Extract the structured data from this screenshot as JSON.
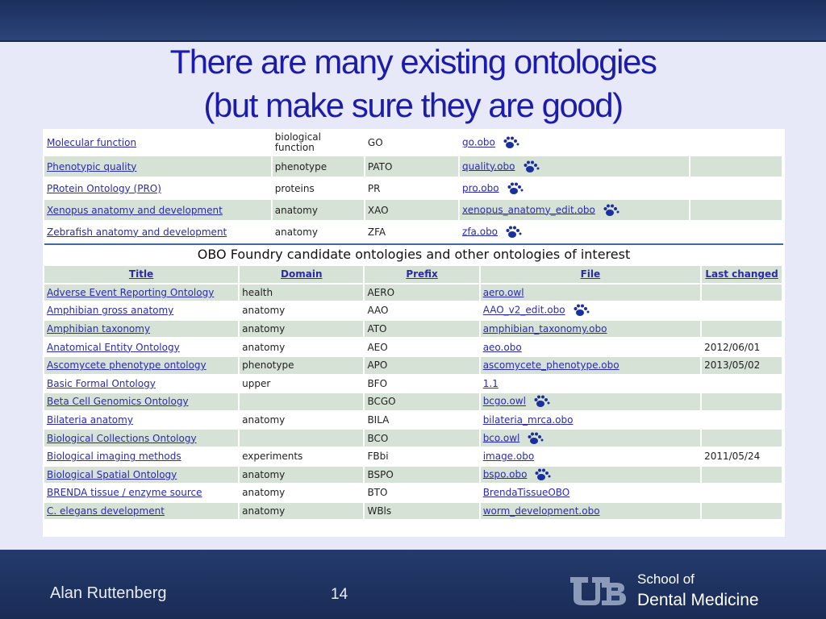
{
  "slide": {
    "title_line1": "There are many existing ontologies",
    "title_line2": "(but make sure they are good)",
    "author": "Alan Ruttenberg",
    "page_number": "14",
    "school_line1": "School of",
    "school_line2": "Dental Medicine",
    "logo_text": "UB"
  },
  "colors": {
    "title": "#1c1ca8",
    "link": "#2a2ab0",
    "row_alt": "#d7e2d7",
    "bar": "#243b6d",
    "paw": "#1a2fa0"
  },
  "top_table": {
    "rows": [
      {
        "title": "Molecular function",
        "domain": "biological function",
        "prefix": "GO",
        "file": "go.obo",
        "paw": true
      },
      {
        "title": "Phenotypic quality",
        "domain": "phenotype",
        "prefix": "PATO",
        "file": "quality.obo",
        "paw": true
      },
      {
        "title": "PRotein Ontology (PRO)",
        "domain": "proteins",
        "prefix": "PR",
        "file": "pro.obo",
        "paw": true
      },
      {
        "title": "Xenopus anatomy and development",
        "domain": "anatomy",
        "prefix": "XAO",
        "file": "xenopus_anatomy_edit.obo",
        "paw": true
      },
      {
        "title": "Zebrafish anatomy and development",
        "domain": "anatomy",
        "prefix": "ZFA",
        "file": "zfa.obo",
        "paw": true
      }
    ]
  },
  "candidate_table": {
    "heading": "OBO Foundry candidate ontologies and other ontologies of interest",
    "columns": [
      "Title",
      "Domain",
      "Prefix",
      "File",
      "Last changed"
    ],
    "rows": [
      {
        "title": "Adverse Event Reporting Ontology",
        "domain": "health",
        "prefix": "AERO",
        "file": "aero.owl",
        "last_changed": "",
        "paw": false
      },
      {
        "title": "Amphibian gross anatomy",
        "domain": "anatomy",
        "prefix": "AAO",
        "file": "AAO_v2_edit.obo",
        "last_changed": "",
        "paw": true
      },
      {
        "title": "Amphibian taxonomy",
        "domain": "anatomy",
        "prefix": "ATO",
        "file": "amphibian_taxonomy.obo",
        "last_changed": "",
        "paw": false
      },
      {
        "title": "Anatomical Entity Ontology",
        "domain": "anatomy",
        "prefix": "AEO",
        "file": "aeo.obo",
        "last_changed": "2012/06/01",
        "paw": false
      },
      {
        "title": "Ascomycete phenotype ontology",
        "domain": "phenotype",
        "prefix": "APO",
        "file": "ascomycete_phenotype.obo",
        "last_changed": "2013/05/02",
        "paw": false
      },
      {
        "title": "Basic Formal Ontology",
        "domain": "upper",
        "prefix": "BFO",
        "file": "1.1",
        "last_changed": "",
        "paw": false
      },
      {
        "title": "Beta Cell Genomics Ontology",
        "domain": "",
        "prefix": "BCGO",
        "file": "bcgo.owl",
        "last_changed": "",
        "paw": true
      },
      {
        "title": "Bilateria anatomy",
        "domain": "anatomy",
        "prefix": "BILA",
        "file": "bilateria_mrca.obo",
        "last_changed": "",
        "paw": false
      },
      {
        "title": "Biological Collections Ontology",
        "domain": "",
        "prefix": "BCO",
        "file": "bco.owl",
        "last_changed": "",
        "paw": true
      },
      {
        "title": "Biological imaging methods",
        "domain": "experiments",
        "prefix": "FBbi",
        "file": "image.obo",
        "last_changed": "2011/05/24",
        "paw": false
      },
      {
        "title": "Biological Spatial Ontology",
        "domain": "anatomy",
        "prefix": "BSPO",
        "file": "bspo.obo",
        "last_changed": "",
        "paw": true
      },
      {
        "title": "BRENDA tissue / enzyme source",
        "domain": "anatomy",
        "prefix": "BTO",
        "file": "BrendaTissueOBO",
        "last_changed": "",
        "paw": false
      },
      {
        "title": "C. elegans development",
        "domain": "anatomy",
        "prefix": "WBls",
        "file": "worm_development.obo",
        "last_changed": "",
        "paw": false
      }
    ]
  }
}
